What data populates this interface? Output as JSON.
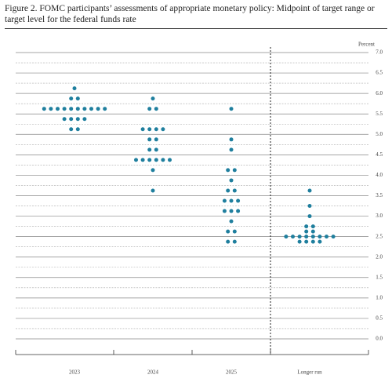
{
  "chart_data": {
    "type": "dot",
    "title": "Figure 2. FOMC participants’ assessments of appropriate monetary policy: Midpoint of target range or target level for the federal funds rate",
    "y_label": "Percent",
    "categories": [
      "2023",
      "2024",
      "2025",
      "Longer run"
    ],
    "color": "#1f7f9e",
    "values": [
      [
        6.125,
        5.875,
        5.875,
        5.625,
        5.625,
        5.625,
        5.625,
        5.625,
        5.625,
        5.625,
        5.625,
        5.625,
        5.625,
        5.375,
        5.375,
        5.375,
        5.375,
        5.125,
        5.125
      ],
      [
        5.875,
        5.625,
        5.625,
        5.125,
        5.125,
        5.125,
        5.125,
        4.875,
        4.875,
        4.625,
        4.625,
        4.375,
        4.375,
        4.375,
        4.375,
        4.375,
        4.375,
        4.125,
        3.625
      ],
      [
        5.625,
        4.875,
        4.625,
        4.125,
        4.125,
        3.875,
        3.625,
        3.625,
        3.375,
        3.375,
        3.375,
        3.125,
        3.125,
        3.125,
        2.875,
        2.625,
        2.625,
        2.375,
        2.375
      ],
      [
        3.625,
        3.25,
        3.0,
        2.75,
        2.75,
        2.625,
        2.625,
        2.5,
        2.5,
        2.5,
        2.5,
        2.5,
        2.5,
        2.5,
        2.5,
        2.375,
        2.375,
        2.375,
        2.375
      ]
    ],
    "ylim": [
      0,
      7
    ],
    "yticks": [
      {
        "value": 0,
        "label": "0.0"
      },
      0.5,
      {
        "value": 1,
        "label": "1.0"
      },
      1.5,
      {
        "value": 2,
        "label": "2.0"
      },
      2.5,
      {
        "value": 3,
        "label": "3.0"
      },
      3.5,
      {
        "value": 4,
        "label": "4.0"
      },
      4.5,
      {
        "value": 5,
        "label": "5.0"
      },
      5.5,
      {
        "value": 6,
        "label": "6.0"
      },
      6.5,
      {
        "value": 7,
        "label": "7.0"
      }
    ],
    "minor_yticks": [
      0.25,
      0.75,
      1.25,
      1.75,
      2.25,
      2.75,
      3.25,
      3.75,
      4.25,
      4.75,
      5.25,
      5.75,
      6.25,
      6.75
    ],
    "grid": true
  }
}
